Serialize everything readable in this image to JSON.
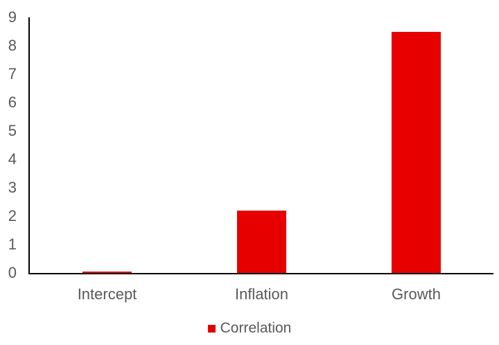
{
  "chart_data": {
    "type": "bar",
    "title": "",
    "xlabel": "",
    "ylabel": "",
    "categories": [
      "Intercept",
      "Inflation",
      "Growth"
    ],
    "series": [
      {
        "name": "Correlation",
        "color": "#e60000",
        "values": [
          0.06,
          2.2,
          8.5
        ]
      }
    ],
    "ylim": [
      0,
      9
    ],
    "ytick_step": 1,
    "ytick_labels": [
      "0",
      "1",
      "2",
      "3",
      "4",
      "5",
      "6",
      "7",
      "8",
      "9"
    ],
    "grid": false,
    "legend_position": "bottom",
    "colors": {
      "bar": "#e60000",
      "axis": "#000000",
      "text": "#595959",
      "background": "#ffffff"
    }
  },
  "legend": {
    "label": "Correlation"
  }
}
